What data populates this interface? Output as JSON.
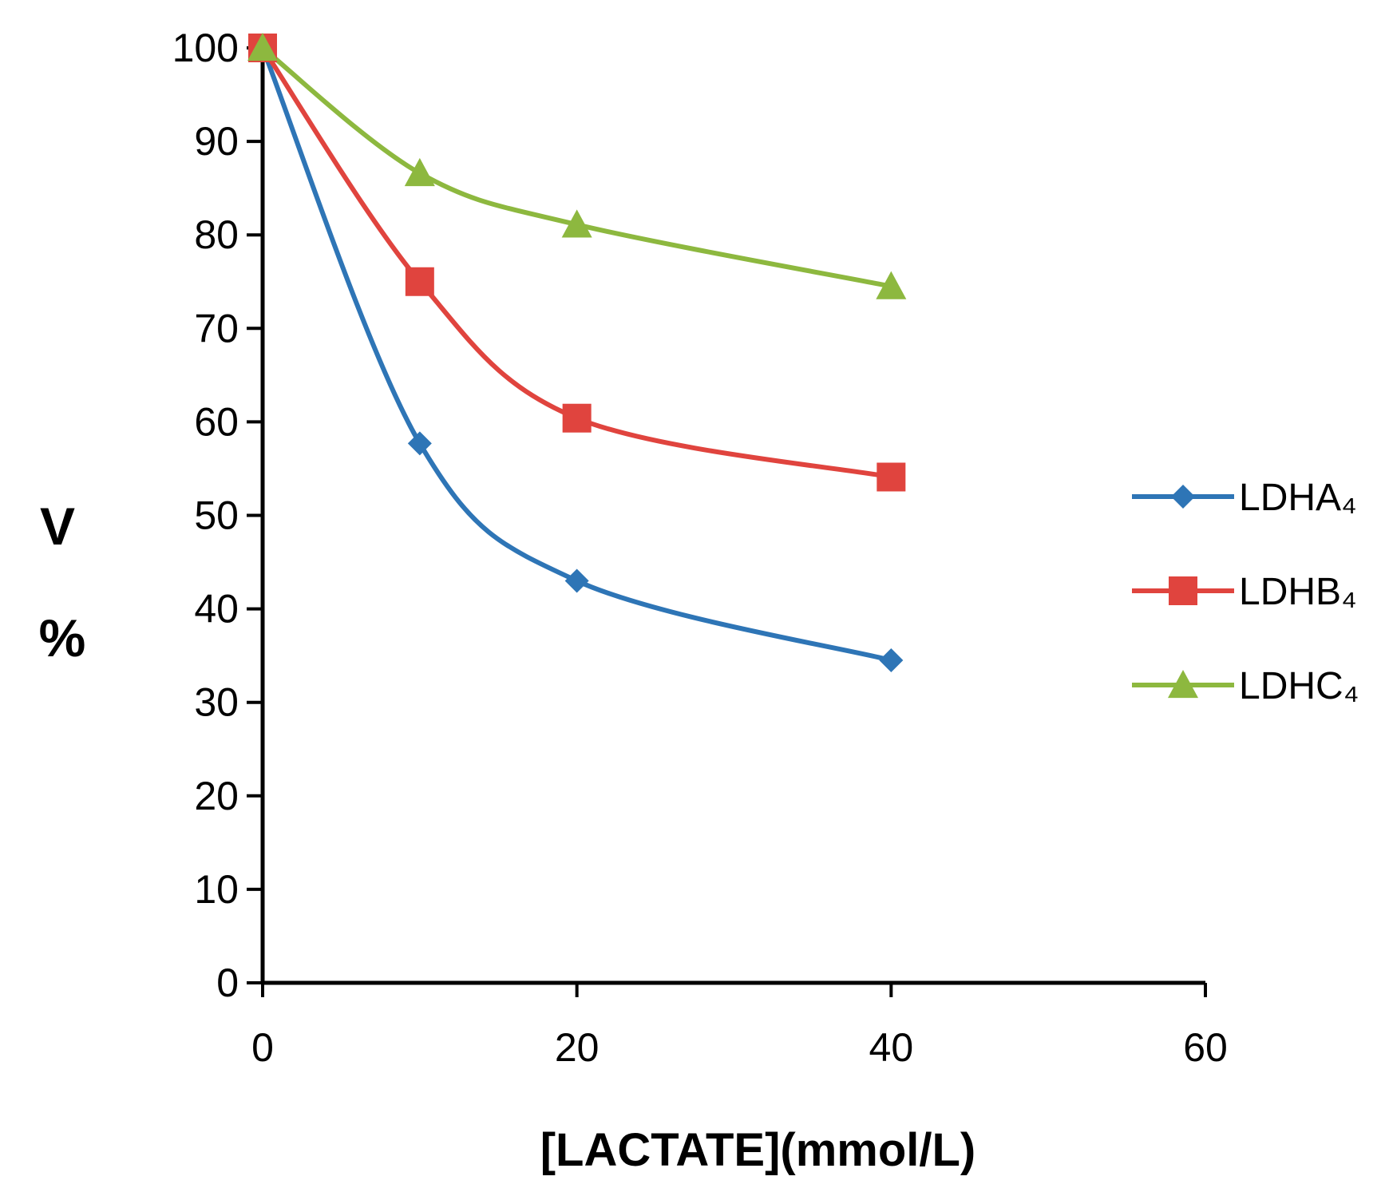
{
  "chart_data": {
    "type": "line",
    "title": "",
    "xlabel": "[LACTATE](mmol/L)",
    "ylabel": [
      "V",
      "%"
    ],
    "xlim": [
      0,
      60
    ],
    "ylim": [
      0,
      100
    ],
    "xticks": [
      0,
      20,
      40,
      60
    ],
    "yticks": [
      0,
      10,
      20,
      30,
      40,
      50,
      60,
      70,
      80,
      90,
      100
    ],
    "grid": false,
    "legend_position": "right",
    "x": [
      0,
      10,
      20,
      40
    ],
    "series": [
      {
        "name": "LDHA₄",
        "marker": "diamond",
        "color": "#2E75B6",
        "values": [
          100,
          57.7,
          43,
          34.5
        ]
      },
      {
        "name": "LDHB₄",
        "marker": "square",
        "color": "#E0443E",
        "values": [
          100,
          75,
          60.4,
          54.1
        ]
      },
      {
        "name": "LDHC₄",
        "marker": "triangle",
        "color": "#8DB83F",
        "values": [
          100,
          86.6,
          81.1,
          74.5
        ]
      }
    ]
  }
}
